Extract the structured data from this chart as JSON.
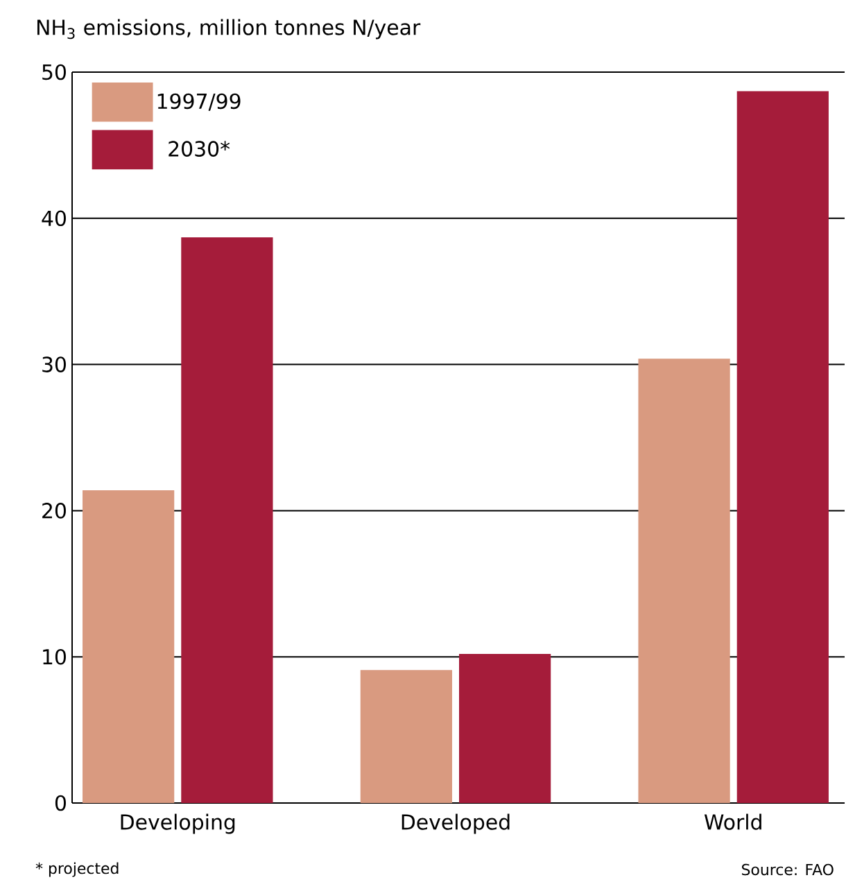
{
  "chart_data": {
    "type": "bar",
    "title": "NH$_{3}$ emissions, million tonnes N/year",
    "categories": [
      "Developing",
      "Developed",
      "World"
    ],
    "series": [
      {
        "name": "1997/99",
        "color": "#d99a80",
        "values": [
          21.4,
          9.1,
          30.4
        ]
      },
      {
        "name": "2030*",
        "color": "#a51c3a",
        "values": [
          38.7,
          10.2,
          48.7
        ]
      }
    ],
    "ylim": [
      0,
      50
    ],
    "yticks": [
      0,
      10,
      20,
      30,
      40,
      50
    ],
    "grid": "y",
    "legend": "top left",
    "annotations": [
      "* projected",
      "Source: FAO"
    ]
  }
}
